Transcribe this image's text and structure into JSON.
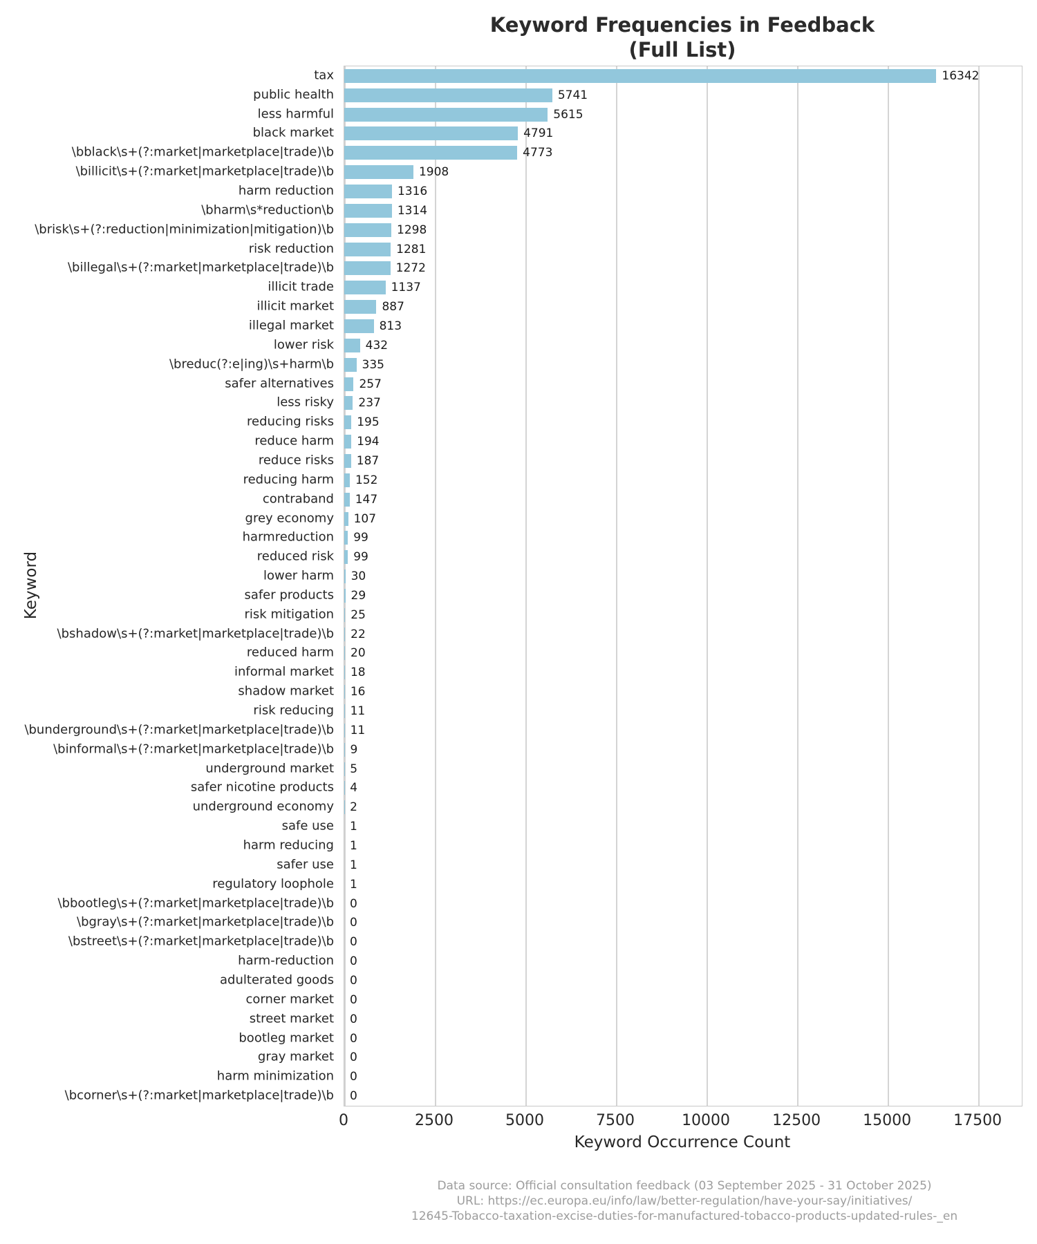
{
  "title": {
    "line1": "Keyword Frequencies in Feedback",
    "line2": "(Full List)"
  },
  "footer": {
    "line1": "Data source: Official consultation feedback (03 September 2025 - 31 October 2025)",
    "line2": "URL: https://ec.europa.eu/info/law/better-regulation/have-your-say/initiatives/",
    "line3": "12645-Tobacco-taxation-excise-duties-for-manufactured-tobacco-products-updated-rules-_en"
  },
  "colors": {
    "bar": "#92c7dc",
    "grid": "#d4d4d4",
    "spine": "#c8c8c8",
    "text": "#262626",
    "value_text": "#1a1a1a",
    "footer_text": "#9d9d9d"
  },
  "chart_data": {
    "type": "bar",
    "orientation": "horizontal",
    "title": "Keyword Frequencies in Feedback (Full List)",
    "xlabel": "Keyword Occurrence Count",
    "ylabel": "Keyword",
    "xlim": [
      0,
      18700
    ],
    "xticks": [
      0,
      2500,
      5000,
      7500,
      10000,
      12500,
      15000,
      17500
    ],
    "grid": "vertical-only",
    "legend": null,
    "bar_color": "#92c7dc",
    "categories": [
      "tax",
      "public health",
      "less harmful",
      "black market",
      "\\bblack\\s+(?:market|marketplace|trade)\\b",
      "\\billicit\\s+(?:market|marketplace|trade)\\b",
      "harm reduction",
      "\\bharm\\s*reduction\\b",
      "\\brisk\\s+(?:reduction|minimization|mitigation)\\b",
      "risk reduction",
      "\\billegal\\s+(?:market|marketplace|trade)\\b",
      "illicit trade",
      "illicit market",
      "illegal market",
      "lower risk",
      "\\breduc(?:e|ing)\\s+harm\\b",
      "safer alternatives",
      "less risky",
      "reducing risks",
      "reduce harm",
      "reduce risks",
      "reducing harm",
      "contraband",
      "grey economy",
      "harmreduction",
      "reduced risk",
      "lower harm",
      "safer products",
      "risk mitigation",
      "\\bshadow\\s+(?:market|marketplace|trade)\\b",
      "reduced harm",
      "informal market",
      "shadow market",
      "risk reducing",
      "\\bunderground\\s+(?:market|marketplace|trade)\\b",
      "\\binformal\\s+(?:market|marketplace|trade)\\b",
      "underground market",
      "safer nicotine products",
      "underground economy",
      "safe use",
      "harm reducing",
      "safer use",
      "regulatory loophole",
      "\\bbootleg\\s+(?:market|marketplace|trade)\\b",
      "\\bgray\\s+(?:market|marketplace|trade)\\b",
      "\\bstreet\\s+(?:market|marketplace|trade)\\b",
      "harm-reduction",
      "adulterated goods",
      "corner market",
      "street market",
      "bootleg market",
      "gray market",
      "harm minimization",
      "\\bcorner\\s+(?:market|marketplace|trade)\\b"
    ],
    "values": [
      16342,
      5741,
      5615,
      4791,
      4773,
      1908,
      1316,
      1314,
      1298,
      1281,
      1272,
      1137,
      887,
      813,
      432,
      335,
      257,
      237,
      195,
      194,
      187,
      152,
      147,
      107,
      99,
      99,
      30,
      29,
      25,
      22,
      20,
      18,
      16,
      11,
      11,
      9,
      5,
      4,
      2,
      1,
      1,
      1,
      1,
      0,
      0,
      0,
      0,
      0,
      0,
      0,
      0,
      0,
      0,
      0
    ]
  }
}
